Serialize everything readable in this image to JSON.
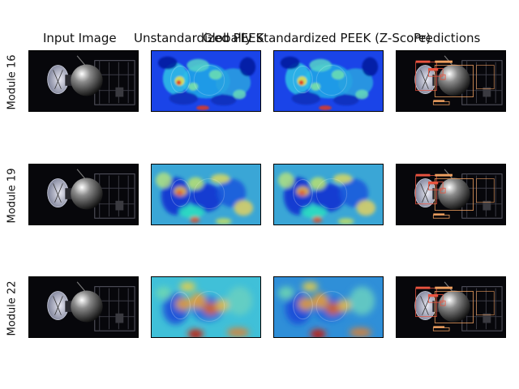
{
  "columns": [
    {
      "title": "Input Image"
    },
    {
      "title": "Unstandardized PEEK"
    },
    {
      "title": "Globally Standardized PEEK (Z-Score)"
    },
    {
      "title": "Predictions"
    }
  ],
  "rows": [
    {
      "label": "Module 16",
      "heat": "fine"
    },
    {
      "label": "Module 19",
      "heat": "medium"
    },
    {
      "label": "Module 22",
      "heat": "coarse"
    }
  ],
  "colors": {
    "bg": "#ffffff",
    "space": "#07070b",
    "box_red": "#e8533f",
    "box_orange": "#f0a060"
  }
}
